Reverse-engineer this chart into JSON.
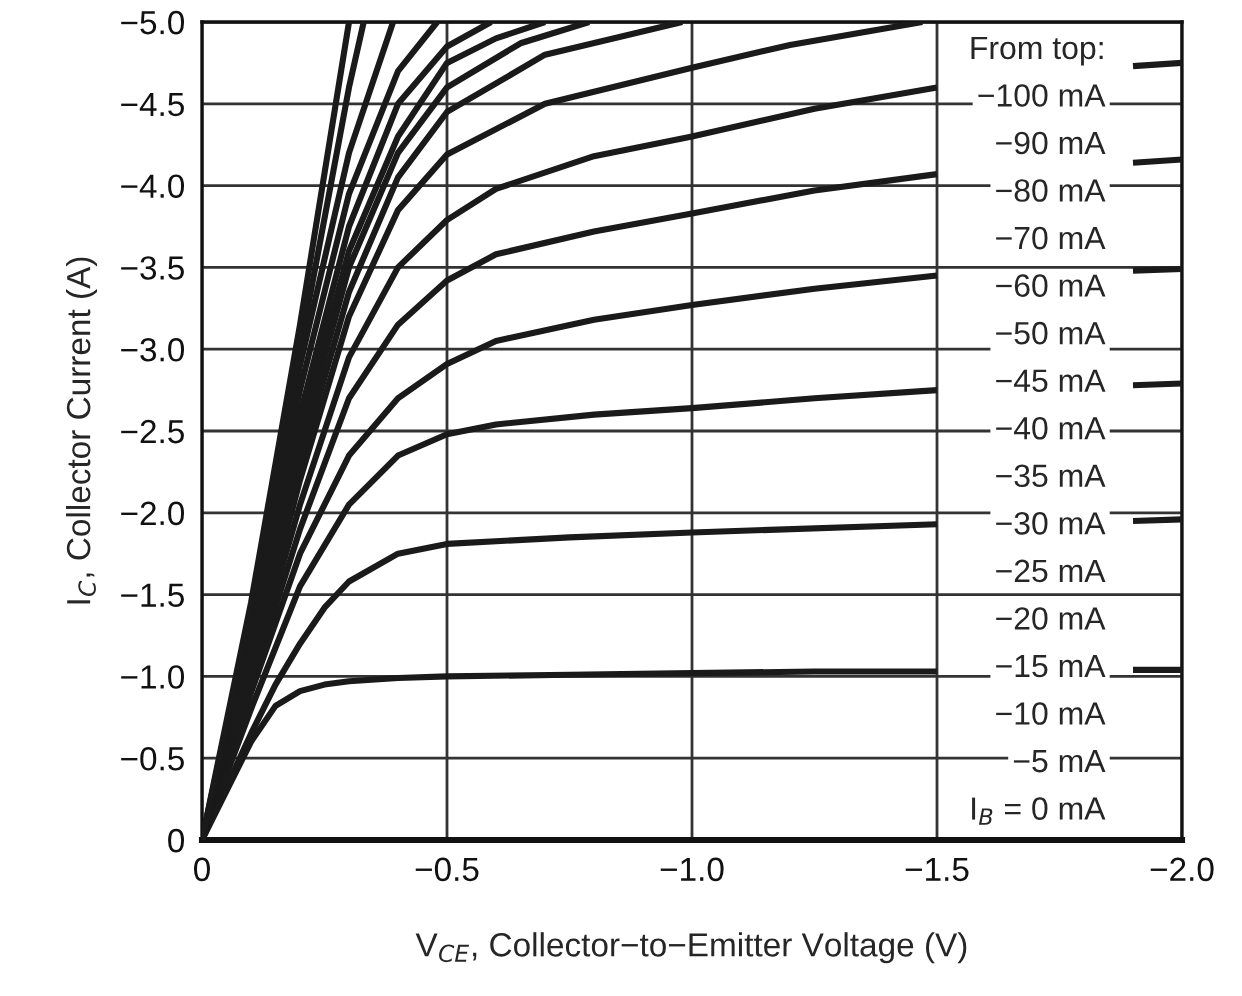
{
  "chart_data": {
    "type": "line",
    "xlabel": "V$_{CE}$, Collector−to−Emitter Voltage (V)",
    "ylabel": "I$_{C}$, Collector Current (A)",
    "xlim": [
      0,
      -2.0
    ],
    "ylim": [
      0,
      -5.0
    ],
    "xticks": [
      0,
      {
        "value": -0.5,
        "label": "−0.5"
      },
      {
        "value": -1.0,
        "label": "−1.0"
      },
      {
        "value": -1.5,
        "label": "−1.5"
      },
      {
        "value": -2.0,
        "label": "−2.0"
      }
    ],
    "yticks": [
      0,
      {
        "value": -0.5,
        "label": "−0.5"
      },
      {
        "value": -1.0,
        "label": "−1.0"
      },
      {
        "value": -1.5,
        "label": "−1.5"
      },
      {
        "value": -2.0,
        "label": "−2.0"
      },
      {
        "value": -2.5,
        "label": "−2.5"
      },
      {
        "value": -3.0,
        "label": "−3.0"
      },
      {
        "value": -3.5,
        "label": "−3.5"
      },
      {
        "value": -4.0,
        "label": "−4.0"
      },
      {
        "value": -4.5,
        "label": "−4.5"
      },
      {
        "value": -5.0,
        "label": "−5.0"
      }
    ],
    "grid": true,
    "marker": "none",
    "line_style": "solid",
    "annotations": [
      "From top:",
      "−100 mA",
      "−90 mA",
      "−80 mA",
      "−70 mA",
      "−60 mA",
      "−50 mA",
      "−45 mA",
      "−40 mA",
      "−35 mA",
      "−30 mA",
      "−25 mA",
      "−20 mA",
      "−15 mA",
      "−10 mA",
      "−5 mA",
      "I$_{B}$ = 0 mA"
    ],
    "series": [
      {
        "color": "#1a1a1a",
        "x": [
          0,
          -0.05,
          -0.1,
          -0.15,
          -0.2,
          -0.25,
          -0.3,
          -0.4,
          -0.5,
          -0.75,
          -1.0,
          -1.25,
          -1.5,
          -1.7,
          -1.9,
          -2.0
        ],
        "values": [
          0,
          -0.3,
          -0.6,
          -0.82,
          -0.91,
          -0.95,
          -0.97,
          -0.99,
          -1.0,
          -1.01,
          -1.02,
          -1.03,
          -1.03,
          null,
          -1.04,
          -1.04
        ]
      },
      {
        "color": "#1a1a1a",
        "x": [
          0,
          -0.1,
          -0.15,
          -0.2,
          -0.25,
          -0.3,
          -0.4,
          -0.5,
          -0.75,
          -1.0,
          -1.5,
          -1.7,
          -1.9,
          -2.0
        ],
        "values": [
          0,
          -0.65,
          -0.95,
          -1.2,
          -1.42,
          -1.58,
          -1.75,
          -1.81,
          -1.85,
          -1.88,
          -1.93,
          null,
          -1.95,
          -1.96
        ]
      },
      {
        "color": "#1a1a1a",
        "x": [
          0,
          -0.1,
          -0.2,
          -0.3,
          -0.4,
          -0.5,
          -0.6,
          -0.8,
          -1.0,
          -1.25,
          -1.5,
          -1.7,
          -1.9,
          -2.0
        ],
        "values": [
          0,
          -0.8,
          -1.55,
          -2.05,
          -2.35,
          -2.48,
          -2.54,
          -2.6,
          -2.64,
          -2.7,
          -2.75,
          null,
          -2.78,
          -2.79
        ]
      },
      {
        "color": "#1a1a1a",
        "x": [
          0,
          -0.1,
          -0.2,
          -0.3,
          -0.4,
          -0.5,
          -0.6,
          -0.8,
          -1.0,
          -1.25,
          -1.5,
          -1.7,
          -1.9,
          -2.0
        ],
        "values": [
          0,
          -0.9,
          -1.75,
          -2.35,
          -2.7,
          -2.91,
          -3.05,
          -3.18,
          -3.27,
          -3.37,
          -3.45,
          null,
          -3.48,
          -3.49
        ]
      },
      {
        "color": "#1a1a1a",
        "x": [
          0,
          -0.1,
          -0.2,
          -0.3,
          -0.4,
          -0.5,
          -0.6,
          -0.8,
          -1.0,
          -1.25,
          -1.5,
          -1.7,
          -1.9,
          -2.0
        ],
        "values": [
          0,
          -0.95,
          -1.9,
          -2.7,
          -3.15,
          -3.42,
          -3.58,
          -3.72,
          -3.83,
          -3.97,
          -4.07,
          null,
          -4.14,
          -4.16
        ]
      },
      {
        "color": "#1a1a1a",
        "x": [
          0,
          -0.1,
          -0.2,
          -0.3,
          -0.4,
          -0.5,
          -0.6,
          -0.8,
          -1.0,
          -1.25,
          -1.5,
          -1.7,
          -1.9,
          -2.0
        ],
        "values": [
          0,
          -1.0,
          -2.05,
          -2.95,
          -3.5,
          -3.79,
          -3.98,
          -4.18,
          -4.3,
          -4.47,
          -4.6,
          null,
          -4.73,
          -4.75
        ]
      },
      {
        "color": "#1a1a1a",
        "x": [
          0,
          -0.1,
          -0.2,
          -0.3,
          -0.4,
          -0.5,
          -0.7,
          -1.0,
          -1.2,
          -1.47
        ],
        "values": [
          0,
          -1.05,
          -2.2,
          -3.2,
          -3.85,
          -4.19,
          -4.5,
          -4.72,
          -4.86,
          -5.0
        ]
      },
      {
        "color": "#1a1a1a",
        "x": [
          0,
          -0.1,
          -0.2,
          -0.3,
          -0.4,
          -0.5,
          -0.7,
          -0.98
        ],
        "values": [
          0,
          -1.1,
          -2.3,
          -3.35,
          -4.05,
          -4.45,
          -4.8,
          -5.0
        ]
      },
      {
        "color": "#1a1a1a",
        "x": [
          0,
          -0.1,
          -0.2,
          -0.3,
          -0.4,
          -0.5,
          -0.65,
          -0.79
        ],
        "values": [
          0,
          -1.15,
          -2.4,
          -3.5,
          -4.2,
          -4.6,
          -4.87,
          -5.0
        ]
      },
      {
        "color": "#1a1a1a",
        "x": [
          0,
          -0.1,
          -0.2,
          -0.3,
          -0.4,
          -0.5,
          -0.6,
          -0.7
        ],
        "values": [
          0,
          -1.2,
          -2.5,
          -3.6,
          -4.3,
          -4.75,
          -4.9,
          -5.0
        ]
      },
      {
        "color": "#1a1a1a",
        "x": [
          0,
          -0.1,
          -0.2,
          -0.3,
          -0.4,
          -0.5,
          -0.59
        ],
        "values": [
          0,
          -1.25,
          -2.6,
          -3.75,
          -4.5,
          -4.85,
          -5.0
        ]
      },
      {
        "color": "#1a1a1a",
        "x": [
          0,
          -0.1,
          -0.2,
          -0.3,
          -0.4,
          -0.48
        ],
        "values": [
          0,
          -1.3,
          -2.75,
          -3.95,
          -4.7,
          -5.0
        ]
      },
      {
        "color": "#1a1a1a",
        "x": [
          0,
          -0.1,
          -0.2,
          -0.3,
          -0.39
        ],
        "values": [
          0,
          -1.35,
          -2.9,
          -4.2,
          -5.0
        ]
      },
      {
        "color": "#1a1a1a",
        "x": [
          0,
          -0.1,
          -0.2,
          -0.3,
          -0.33
        ],
        "values": [
          0,
          -1.4,
          -3.0,
          -4.6,
          -5.0
        ]
      },
      {
        "color": "#1a1a1a",
        "x": [
          0,
          -0.1,
          -0.2,
          -0.3
        ],
        "values": [
          0,
          -1.45,
          -3.15,
          -5.0
        ]
      }
    ]
  }
}
